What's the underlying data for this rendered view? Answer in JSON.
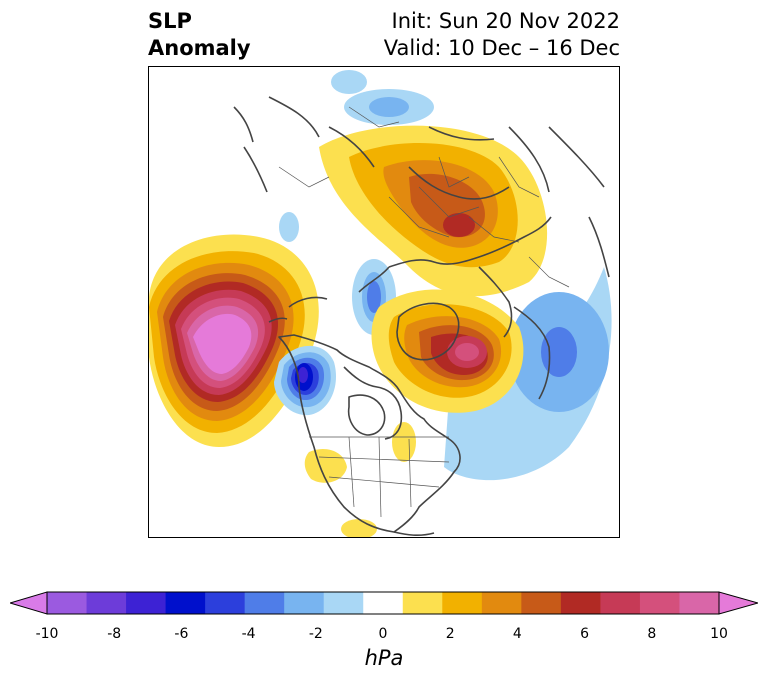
{
  "title": {
    "variable_line1": "SLP",
    "variable_line2": "Anomaly",
    "init": "Init: Sun 20 Nov 2022",
    "valid": "Valid: 10 Dec – 16 Dec"
  },
  "map": {
    "projection": "north-polar-stereographic",
    "anomalies": [
      {
        "region": "North Pacific / Gulf of Alaska",
        "sign": "positive",
        "peak_hPa": 10
      },
      {
        "region": "Western Canada / Pacific Northwest coast",
        "sign": "negative",
        "peak_hPa": -7
      },
      {
        "region": "Greenland / Norwegian Sea",
        "sign": "positive",
        "peak_hPa": 7
      },
      {
        "region": "Western Russia / Scandinavia",
        "sign": "positive",
        "peak_hPa": 6
      },
      {
        "region": "Central Asia",
        "sign": "negative",
        "peak_hPa": -3
      },
      {
        "region": "Arctic Ocean near Alaska",
        "sign": "negative",
        "peak_hPa": -3
      },
      {
        "region": "North Atlantic south of Iceland",
        "sign": "negative",
        "peak_hPa": -1.5
      }
    ]
  },
  "colorbar": {
    "label": "hPa",
    "ticks": [
      "-10",
      "-8",
      "-6",
      "-4",
      "-2",
      "0",
      "2",
      "4",
      "6",
      "8",
      "10"
    ],
    "colors": [
      "#d97be8",
      "#9b5ae0",
      "#6d3cd9",
      "#3d22d4",
      "#0010cc",
      "#2c3fdc",
      "#4f7de8",
      "#78b4f0",
      "#a9d7f5",
      "#ffffff",
      "#fce04f",
      "#f2b100",
      "#e28a0f",
      "#c75a18",
      "#b12a24",
      "#c63a56",
      "#d4507c",
      "#d966a8",
      "#e57ad9"
    ]
  }
}
